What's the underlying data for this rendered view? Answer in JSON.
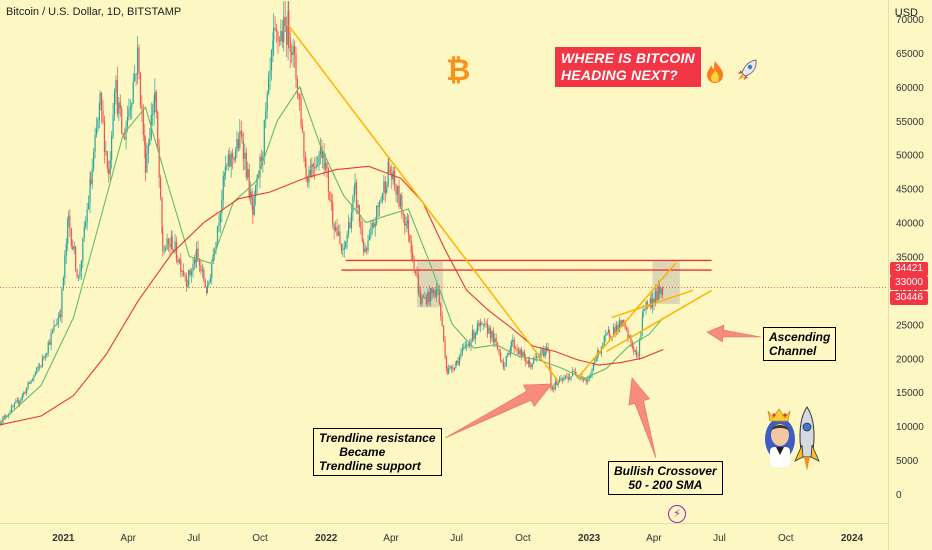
{
  "header": {
    "title": "Bitcoin / U.S. Dollar, 1D, BITSTAMP",
    "currency": "USD"
  },
  "headline": {
    "line1": "WHERE IS BITCOIN",
    "line2": "HEADING NEXT?"
  },
  "annotations": {
    "channel": {
      "line1": "Ascending",
      "line2": "Channel"
    },
    "trendline": {
      "line1": "Trendline resistance",
      "line2": "Became",
      "line3": "Trendline support"
    },
    "crossover": {
      "line1": "Bullish Crossover",
      "line2": "50 - 200 SMA"
    }
  },
  "price_tags": [
    {
      "value": "34421",
      "color": "#f23645"
    },
    {
      "value": "33000",
      "color": "#f23645"
    },
    {
      "value": "30446",
      "color": "#f23645"
    }
  ],
  "icons": {
    "bitcoin": "bitcoin-logo-icon",
    "fire": "fire-icon",
    "rocket": "rocket-icon",
    "flash": "flash-icon",
    "avatar": "avatar-rocket-icon"
  },
  "colors": {
    "background": "#fdf7c3",
    "candle_up": "#26a69a",
    "candle_down": "#ef5350",
    "sma50": "#66bb6a",
    "sma200": "#e53935",
    "trendline": "#ffb300",
    "resistance": "#e53935",
    "arrow": "#f58c7c"
  },
  "chart_data": {
    "type": "line",
    "title": "Bitcoin / U.S. Dollar, 1D, BITSTAMP",
    "xlabel": "",
    "ylabel": "USD",
    "ylim": [
      0,
      72000
    ],
    "y_ticks": [
      0,
      5000,
      10000,
      15000,
      20000,
      25000,
      30000,
      35000,
      40000,
      45000,
      50000,
      55000,
      60000,
      65000,
      70000
    ],
    "x_ticks": [
      {
        "label": "2021",
        "date": "2021-01-01"
      },
      {
        "label": "Apr",
        "date": "2021-04-01"
      },
      {
        "label": "Jul",
        "date": "2021-07-01"
      },
      {
        "label": "Oct",
        "date": "2021-10-01"
      },
      {
        "label": "2022",
        "date": "2022-01-01"
      },
      {
        "label": "Apr",
        "date": "2022-04-01"
      },
      {
        "label": "Jul",
        "date": "2022-07-01"
      },
      {
        "label": "Oct",
        "date": "2022-10-01"
      },
      {
        "label": "2023",
        "date": "2023-01-01"
      },
      {
        "label": "Apr",
        "date": "2023-04-01"
      },
      {
        "label": "Jul",
        "date": "2023-07-01"
      },
      {
        "label": "Oct",
        "date": "2023-10-01"
      },
      {
        "label": "2024",
        "date": "2024-01-01"
      }
    ],
    "xlim": [
      "2020-10-05",
      "2024-02-20"
    ],
    "grid": false,
    "series": [
      {
        "name": "",
        "kind": "price",
        "points": [
          [
            "2020-10-05",
            10600
          ],
          [
            "2020-11-01",
            13800
          ],
          [
            "2020-12-01",
            19200
          ],
          [
            "2020-12-28",
            27000
          ],
          [
            "2021-01-08",
            40500
          ],
          [
            "2021-01-22",
            31500
          ],
          [
            "2021-02-08",
            46000
          ],
          [
            "2021-02-21",
            57500
          ],
          [
            "2021-03-05",
            47000
          ],
          [
            "2021-03-13",
            61000
          ],
          [
            "2021-03-25",
            52000
          ],
          [
            "2021-04-14",
            64500
          ],
          [
            "2021-04-25",
            49000
          ],
          [
            "2021-05-08",
            59000
          ],
          [
            "2021-05-19",
            36000
          ],
          [
            "2021-06-01",
            37000
          ],
          [
            "2021-06-22",
            31500
          ],
          [
            "2021-07-05",
            35000
          ],
          [
            "2021-07-20",
            29800
          ],
          [
            "2021-08-14",
            47500
          ],
          [
            "2021-09-06",
            52800
          ],
          [
            "2021-09-21",
            41000
          ],
          [
            "2021-10-05",
            51500
          ],
          [
            "2021-10-20",
            66500
          ],
          [
            "2021-11-10",
            69000
          ],
          [
            "2021-11-25",
            58000
          ],
          [
            "2021-12-04",
            47000
          ],
          [
            "2021-12-27",
            51000
          ],
          [
            "2022-01-10",
            41000
          ],
          [
            "2022-01-24",
            35000
          ],
          [
            "2022-02-10",
            44500
          ],
          [
            "2022-02-24",
            35000
          ],
          [
            "2022-03-29",
            48000
          ],
          [
            "2022-04-25",
            39000
          ],
          [
            "2022-05-12",
            28500
          ],
          [
            "2022-06-05",
            30000
          ],
          [
            "2022-06-18",
            18000
          ],
          [
            "2022-07-01",
            19500
          ],
          [
            "2022-07-30",
            24500
          ],
          [
            "2022-08-15",
            24300
          ],
          [
            "2022-09-06",
            18800
          ],
          [
            "2022-09-15",
            22500
          ],
          [
            "2022-10-10",
            19000
          ],
          [
            "2022-11-05",
            21500
          ],
          [
            "2022-11-09",
            15700
          ],
          [
            "2022-12-14",
            18000
          ],
          [
            "2022-12-30",
            16500
          ],
          [
            "2023-01-14",
            21000
          ],
          [
            "2023-01-29",
            23800
          ],
          [
            "2023-02-16",
            25000
          ],
          [
            "2023-03-10",
            20000
          ],
          [
            "2023-03-17",
            27500
          ],
          [
            "2023-03-30",
            28500
          ],
          [
            "2023-04-11",
            30200
          ],
          [
            "2023-04-14",
            30446
          ]
        ]
      },
      {
        "name": "",
        "kind": "sma50",
        "points": [
          [
            "2020-10-05",
            10500
          ],
          [
            "2020-12-01",
            16000
          ],
          [
            "2021-01-15",
            26000
          ],
          [
            "2021-02-20",
            40000
          ],
          [
            "2021-03-25",
            53000
          ],
          [
            "2021-04-25",
            57000
          ],
          [
            "2021-05-25",
            46000
          ],
          [
            "2021-06-25",
            35000
          ],
          [
            "2021-07-25",
            34000
          ],
          [
            "2021-08-25",
            43000
          ],
          [
            "2021-09-25",
            46000
          ],
          [
            "2021-10-25",
            55000
          ],
          [
            "2021-11-25",
            60000
          ],
          [
            "2021-12-25",
            51000
          ],
          [
            "2022-01-25",
            44000
          ],
          [
            "2022-02-25",
            40000
          ],
          [
            "2022-03-25",
            41000
          ],
          [
            "2022-04-25",
            42000
          ],
          [
            "2022-05-25",
            34000
          ],
          [
            "2022-06-25",
            25000
          ],
          [
            "2022-07-25",
            21500
          ],
          [
            "2022-08-25",
            22000
          ],
          [
            "2022-09-25",
            20300
          ],
          [
            "2022-10-25",
            19700
          ],
          [
            "2022-11-25",
            18500
          ],
          [
            "2022-12-25",
            17000
          ],
          [
            "2023-01-25",
            18500
          ],
          [
            "2023-02-25",
            21800
          ],
          [
            "2023-03-25",
            23500
          ],
          [
            "2023-04-14",
            26000
          ]
        ]
      },
      {
        "name": "",
        "kind": "sma200",
        "points": [
          [
            "2020-10-05",
            10200
          ],
          [
            "2020-12-01",
            11500
          ],
          [
            "2021-01-15",
            14500
          ],
          [
            "2021-03-01",
            20500
          ],
          [
            "2021-04-15",
            28500
          ],
          [
            "2021-06-01",
            35500
          ],
          [
            "2021-07-15",
            40000
          ],
          [
            "2021-09-01",
            43500
          ],
          [
            "2021-10-15",
            44500
          ],
          [
            "2021-12-01",
            46500
          ],
          [
            "2022-01-15",
            47800
          ],
          [
            "2022-03-01",
            48300
          ],
          [
            "2022-04-15",
            46500
          ],
          [
            "2022-05-15",
            43000
          ],
          [
            "2022-06-15",
            36000
          ],
          [
            "2022-07-15",
            30000
          ],
          [
            "2022-08-15",
            27000
          ],
          [
            "2022-09-15",
            24500
          ],
          [
            "2022-10-15",
            21800
          ],
          [
            "2022-11-15",
            21000
          ],
          [
            "2022-12-15",
            19800
          ],
          [
            "2023-01-15",
            19000
          ],
          [
            "2023-02-15",
            19400
          ],
          [
            "2023-03-15",
            20000
          ],
          [
            "2023-04-14",
            21300
          ]
        ]
      }
    ],
    "trendlines": [
      {
        "name": "",
        "from": [
          "2021-11-10",
          69000
        ],
        "to": [
          "2022-11-20",
          16500
        ]
      },
      {
        "name": "",
        "from": [
          "2022-12-15",
          17000
        ],
        "to": [
          "2023-05-01",
          34000
        ]
      },
      {
        "name": "",
        "from": [
          "2023-02-01",
          26000
        ],
        "to": [
          "2023-05-25",
          30000
        ]
      },
      {
        "name": "",
        "from": [
          "2023-01-25",
          21000
        ],
        "to": [
          "2023-06-20",
          30000
        ]
      }
    ],
    "horizontal_levels": [
      {
        "value": 34421,
        "from": "2022-01-28",
        "to": "2023-06-20"
      },
      {
        "value": 33000,
        "from": "2022-01-22",
        "to": "2023-06-20"
      },
      {
        "value": 30446,
        "from": "2020-10-05",
        "to": "2023-06-20",
        "dotted": true
      }
    ]
  }
}
